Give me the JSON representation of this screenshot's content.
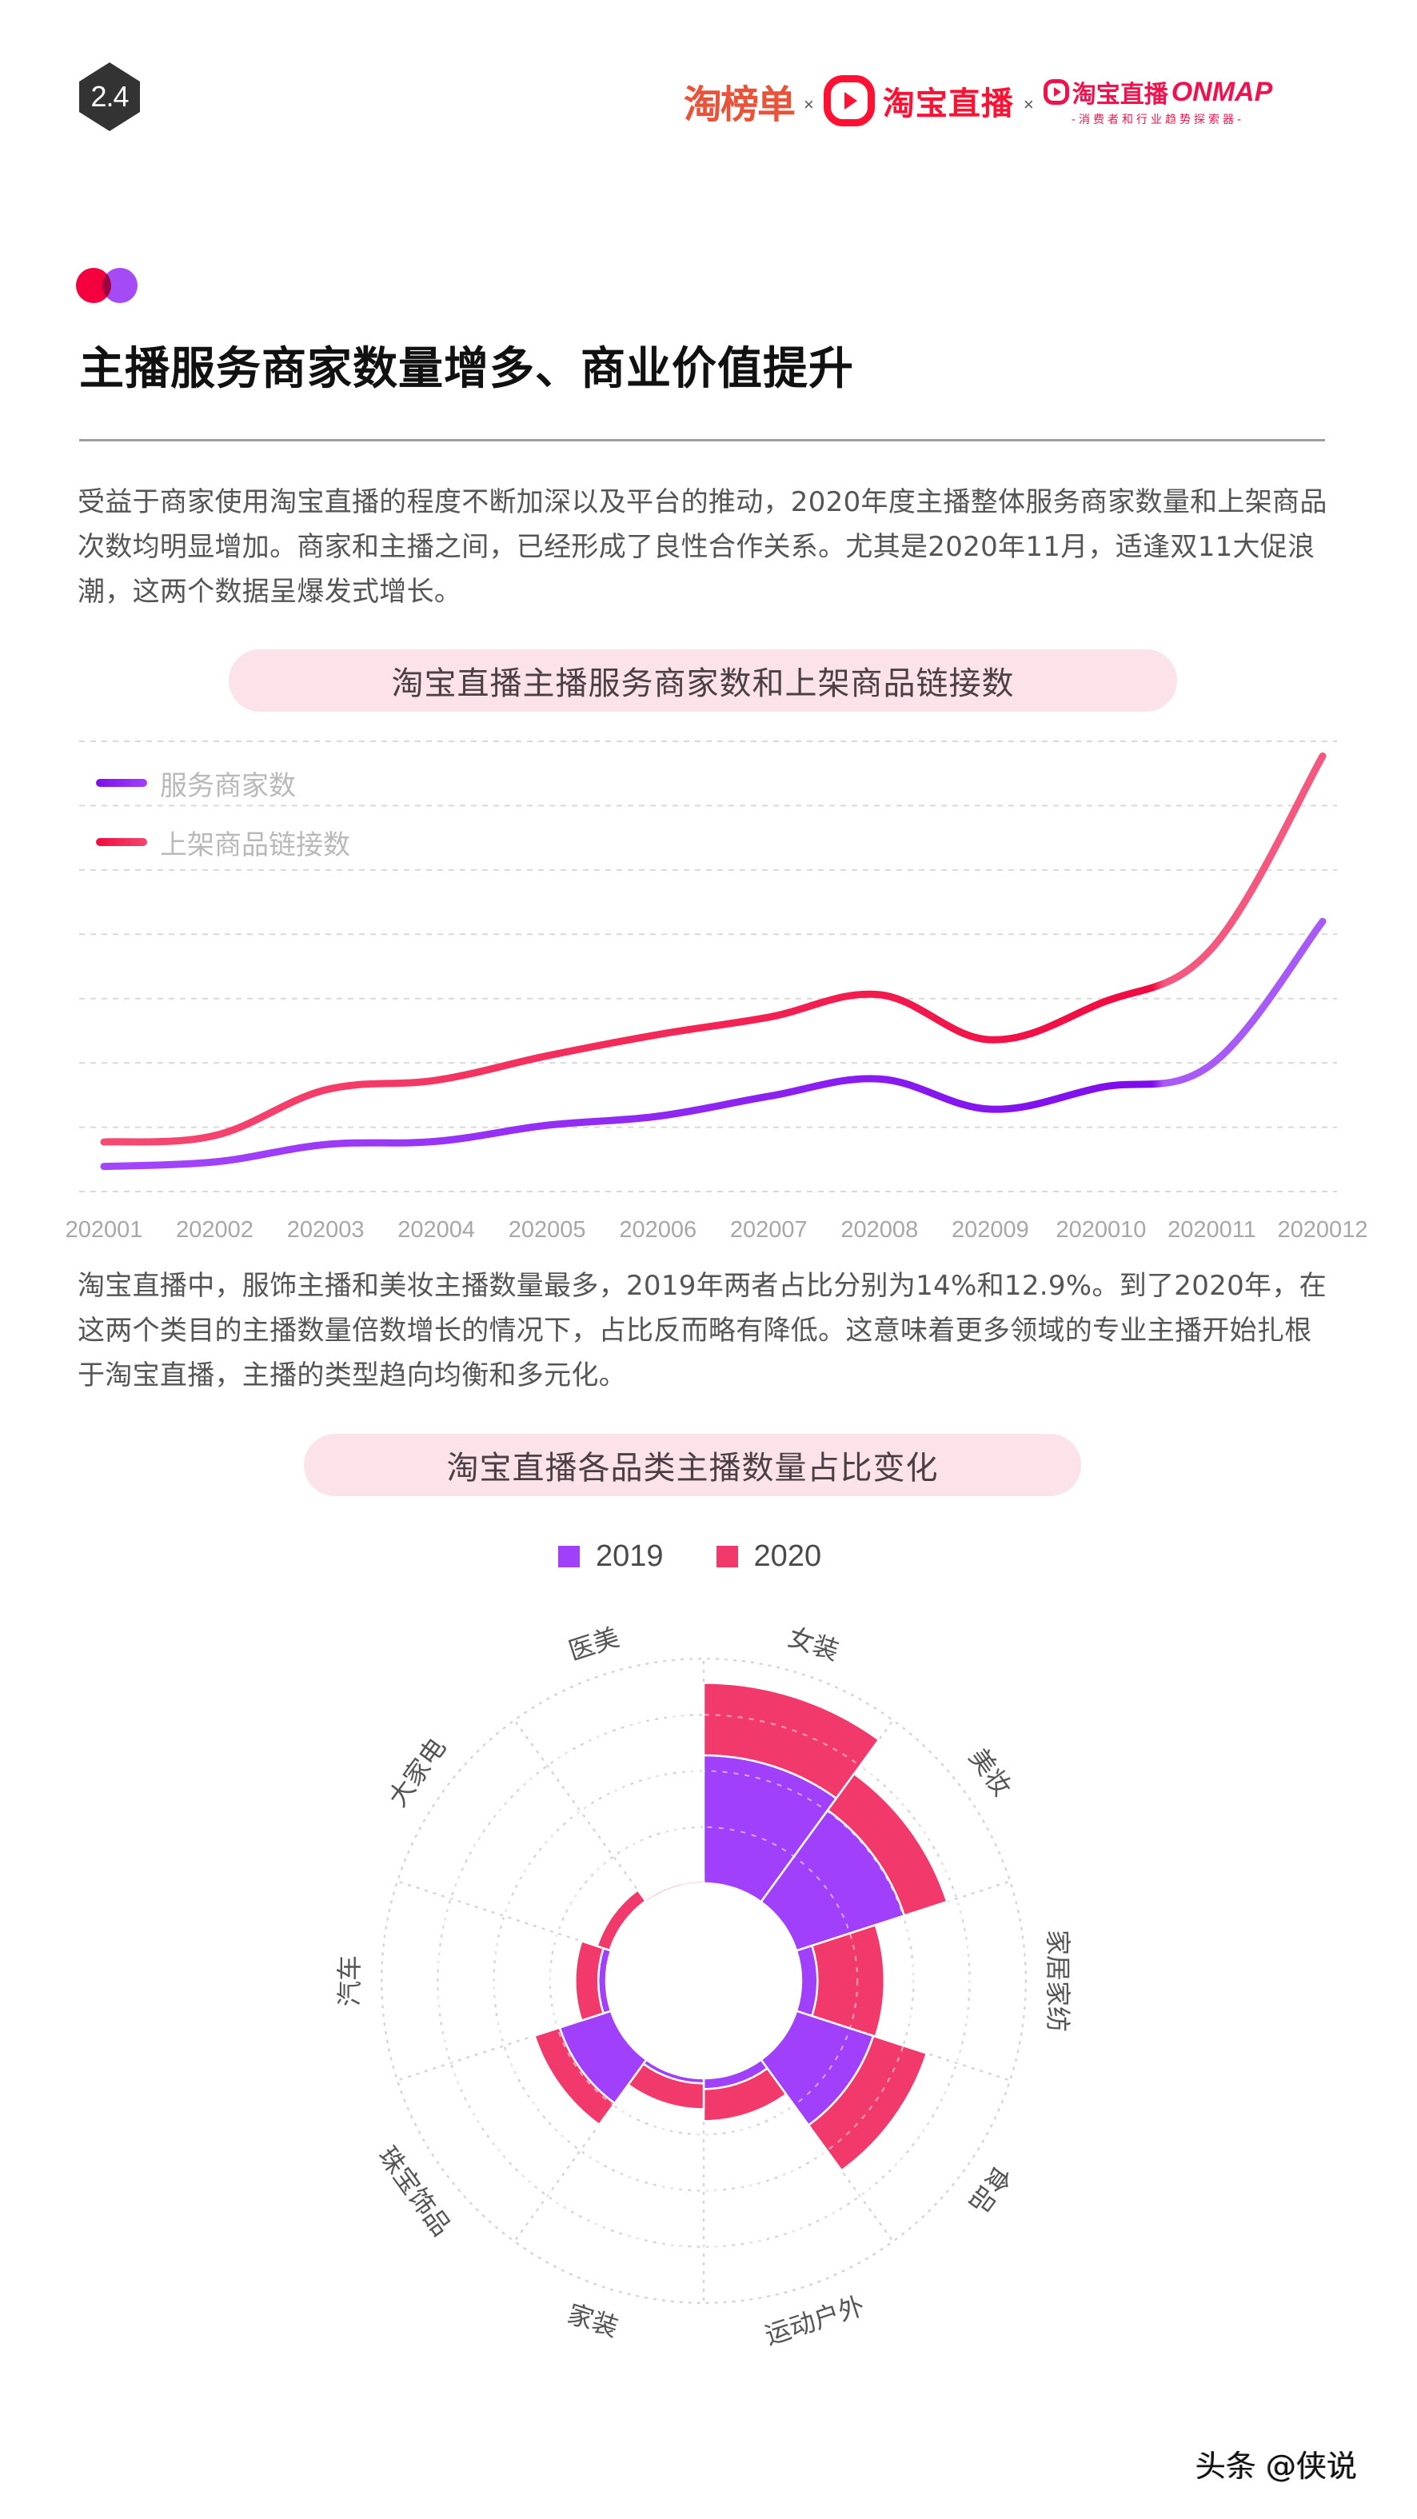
{
  "header": {
    "section_number": "2.4",
    "logos": {
      "taobangdan": "淘榜单",
      "separator": "×",
      "taobao_live": "淘宝直播",
      "onmap_title": "淘宝直播",
      "onmap_brand": "ONMAP",
      "onmap_subtitle": "-消费者和行业趋势探索器-"
    }
  },
  "page": {
    "title": "主播服务商家数量增多、商业价值提升",
    "paragraph1": "受益于商家使用淘宝直播的程度不断加深以及平台的推动，2020年度主播整体服务商家数量和上架商品次数均明显增加。商家和主播之间，已经形成了良性合作关系。尤其是2020年11月，适逢双11大促浪潮，这两个数据呈爆发式增长。",
    "paragraph2": "淘宝直播中，服饰主播和美妆主播数量最多，2019年两者占比分别为14%和12.9%。到了2020年，在这两个类目的主播数量倍数增长的情况下，占比反而略有降低。这意味着更多领域的专业主播开始扎根于淘宝直播，主播的类型趋向均衡和多元化。",
    "watermark": "头条 @侠说"
  },
  "colors": {
    "purple": "#A040FA",
    "pink": "#F2396B",
    "pill_bg": "#FCE2E9",
    "accent_red": "#F5003F"
  },
  "chart_data": [
    {
      "type": "line",
      "title": "淘宝直播主播服务商家数和上架商品链接数",
      "xlabel": "",
      "ylabel": "",
      "y_axis_labels_shown": false,
      "grid": true,
      "gridlines": 8,
      "legend_position": "top-left",
      "x": [
        "202001",
        "202002",
        "202003",
        "202004",
        "202005",
        "202006",
        "202007",
        "202008",
        "202009",
        "2020010",
        "2020011",
        "2020012"
      ],
      "ylim": [
        0,
        7
      ],
      "series": [
        {
          "name": "服务商家数",
          "color": "#9A2EF5",
          "values": [
            0.39,
            0.46,
            0.73,
            0.78,
            1.03,
            1.17,
            1.48,
            1.75,
            1.28,
            1.62,
            1.98,
            4.2
          ]
        },
        {
          "name": "上架商品链接数",
          "color": "#F2285A",
          "values": [
            0.77,
            0.87,
            1.58,
            1.73,
            2.11,
            2.44,
            2.71,
            3.06,
            2.36,
            2.93,
            3.78,
            6.77
          ]
        }
      ],
      "note": "relative values estimated from gridlines; no numeric axis shown"
    },
    {
      "type": "polar-bar-stacked",
      "title": "淘宝直播各品类主播数量占比变化",
      "legend_position": "top",
      "categories": [
        "女装",
        "美妆",
        "家居家纺",
        "食品",
        "运动户外",
        "家装",
        "珠宝饰品",
        "汽车",
        "大家电",
        "医美"
      ],
      "series": [
        {
          "name": "2019",
          "color": "#A040FA",
          "values": [
            2.28,
            2.02,
            0.29,
            1.44,
            0.19,
            0.09,
            0.96,
            0.14,
            0.02,
            0.0
          ]
        },
        {
          "name": "2020",
          "color": "#F2396B",
          "values": [
            1.29,
            0.8,
            1.19,
            1.0,
            0.57,
            0.46,
            0.47,
            0.41,
            0.24,
            0.04
          ]
        }
      ],
      "rings": 5,
      "note": "radial lengths in ring units (estimated), 2020 stacked outside 2019"
    }
  ]
}
